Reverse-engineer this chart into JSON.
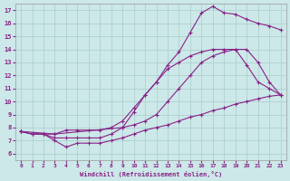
{
  "background_color": "#cce8e8",
  "line_color": "#882288",
  "grid_color": "#aacccc",
  "xlabel": "Windchill (Refroidissement éolien,°C)",
  "ylabel_ticks": [
    6,
    7,
    8,
    9,
    10,
    11,
    12,
    13,
    14,
    15,
    16,
    17
  ],
  "xlabel_ticks": [
    0,
    1,
    2,
    3,
    4,
    5,
    6,
    7,
    8,
    9,
    10,
    11,
    12,
    13,
    14,
    15,
    16,
    17,
    18,
    19,
    20,
    21,
    22,
    23
  ],
  "xlim": [
    -0.5,
    23.5
  ],
  "ylim": [
    5.5,
    17.5
  ],
  "series": [
    {
      "x": [
        0,
        1,
        2,
        3,
        4,
        5,
        6,
        7,
        8,
        9,
        10,
        11,
        12,
        13,
        14,
        15,
        16,
        17,
        18,
        19,
        20,
        21,
        22,
        23
      ],
      "y": [
        7.7,
        7.5,
        7.5,
        7.2,
        7.2,
        7.2,
        7.2,
        7.2,
        7.5,
        8.0,
        9.2,
        10.5,
        11.5,
        12.8,
        13.8,
        15.3,
        16.8,
        17.3,
        16.8,
        16.7,
        16.3,
        16.0,
        15.8,
        15.5
      ]
    },
    {
      "x": [
        0,
        1,
        2,
        3,
        4,
        5,
        6,
        7,
        8,
        9,
        10,
        11,
        12,
        13,
        14,
        15,
        16,
        17,
        18,
        19,
        20,
        21,
        22,
        23
      ],
      "y": [
        7.7,
        7.5,
        7.5,
        7.5,
        7.8,
        7.8,
        7.8,
        7.8,
        8.0,
        8.5,
        9.5,
        10.5,
        11.5,
        12.5,
        13.0,
        13.5,
        13.8,
        14.0,
        14.0,
        14.0,
        12.8,
        11.5,
        11.0,
        10.5
      ]
    },
    {
      "x": [
        0,
        3,
        9,
        10,
        11,
        12,
        13,
        14,
        15,
        16,
        17,
        18,
        19,
        20,
        21,
        22,
        23
      ],
      "y": [
        7.7,
        7.5,
        8.0,
        8.2,
        8.5,
        9.0,
        10.0,
        11.0,
        12.0,
        13.0,
        13.5,
        13.8,
        14.0,
        14.0,
        13.0,
        11.5,
        10.5
      ]
    },
    {
      "x": [
        0,
        1,
        2,
        3,
        4,
        5,
        6,
        7,
        8,
        9,
        10,
        11,
        12,
        13,
        14,
        15,
        16,
        17,
        18,
        19,
        20,
        21,
        22,
        23
      ],
      "y": [
        7.7,
        7.5,
        7.5,
        7.0,
        6.5,
        6.8,
        6.8,
        6.8,
        7.0,
        7.2,
        7.5,
        7.8,
        8.0,
        8.2,
        8.5,
        8.8,
        9.0,
        9.3,
        9.5,
        9.8,
        10.0,
        10.2,
        10.4,
        10.5
      ]
    }
  ]
}
